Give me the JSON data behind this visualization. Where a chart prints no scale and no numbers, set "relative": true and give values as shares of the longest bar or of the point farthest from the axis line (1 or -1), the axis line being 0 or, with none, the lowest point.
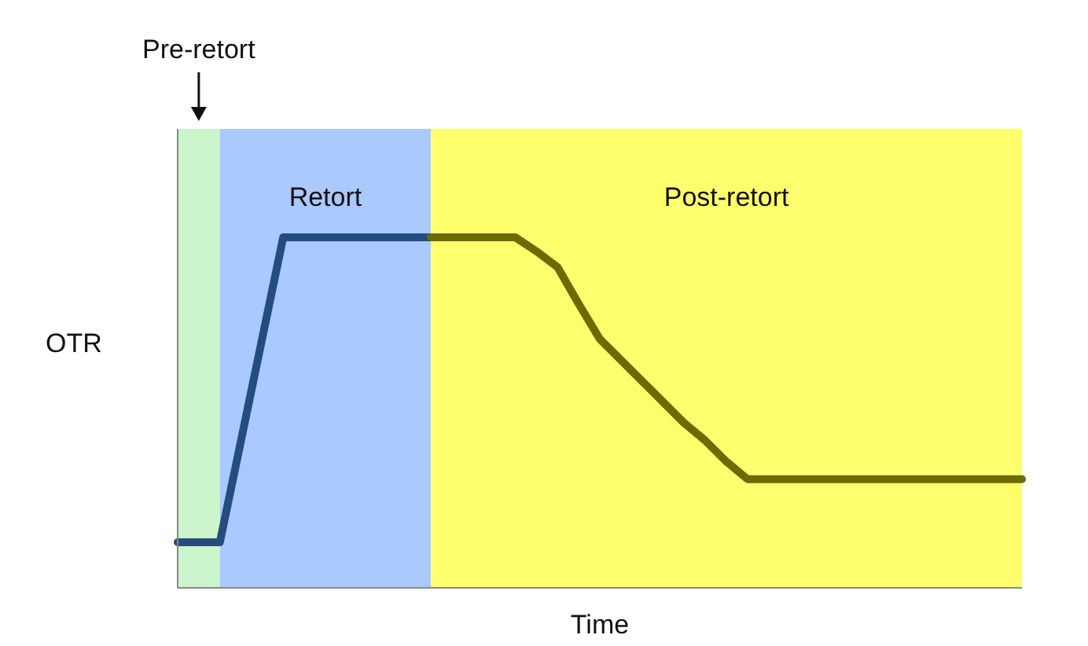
{
  "chart_data": {
    "type": "line",
    "relative": true,
    "xlabel": "Time",
    "ylabel": "OTR",
    "annotations": [
      "Pre-retort",
      "Retort",
      "Post-retort"
    ],
    "categories": [
      null,
      null,
      null,
      null,
      null,
      null,
      null,
      null,
      null,
      null,
      null,
      null,
      null,
      null,
      null,
      null,
      null,
      null,
      null,
      null,
      null,
      null,
      null,
      null,
      null,
      null,
      null,
      null,
      null,
      null,
      null,
      null,
      null,
      null,
      null,
      null,
      null,
      null,
      null,
      null,
      null
    ],
    "series": [
      {
        "color": "#244d7e",
        "values": [
          0.13,
          0.13,
          0.13,
          0.42,
          0.71,
          1,
          1,
          1,
          1,
          1,
          1,
          1,
          1,
          null,
          null,
          null,
          null,
          null,
          null,
          null,
          null,
          null,
          null,
          null,
          null,
          null,
          null,
          null,
          null,
          null,
          null,
          null,
          null,
          null,
          null,
          null,
          null,
          null,
          null,
          null,
          null
        ]
      },
      {
        "color": "#6b6b00",
        "values": [
          null,
          null,
          null,
          null,
          null,
          null,
          null,
          null,
          null,
          null,
          null,
          null,
          1,
          1,
          1,
          1,
          1,
          0.96,
          0.915,
          0.81,
          0.71,
          0.65,
          0.59,
          0.53,
          0.47,
          0.42,
          0.36,
          0.31,
          0.31,
          0.31,
          0.31,
          0.31,
          0.31,
          0.31,
          0.31,
          0.31,
          0.31,
          0.31,
          0.31,
          0.31,
          0.31
        ]
      }
    ]
  }
}
